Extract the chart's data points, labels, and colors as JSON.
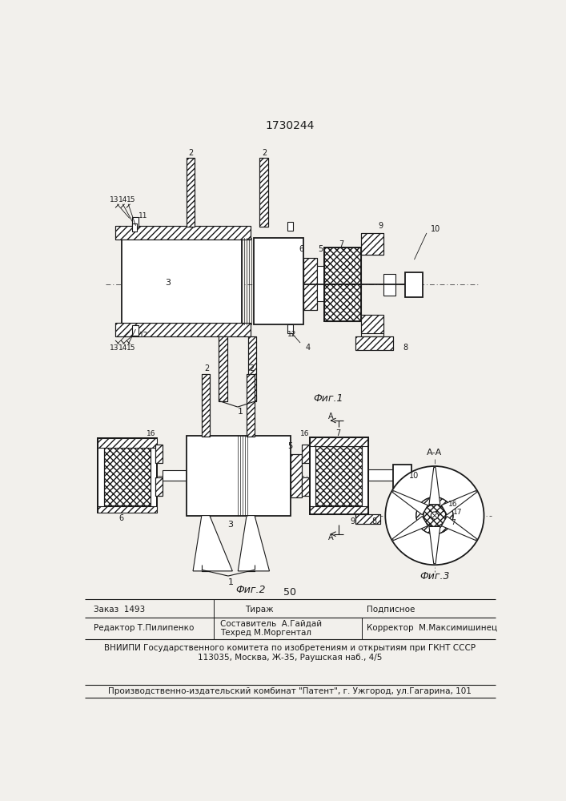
{
  "title": "1730244",
  "fig1_label": "Фиг.1",
  "fig2_label": "Фиг.2",
  "fig3_label": "Фиг.3",
  "page_number": "50",
  "footer_line1": "Составитель  А.Гайдай",
  "footer_line2": "Техред М.Моргентал",
  "footer_editor": "Редактор Т.Пилипенко",
  "footer_corrector": "Корректор  М.Максимишинец",
  "footer_zakaz": "Заказ  1493",
  "footer_tirazh": "Тираж",
  "footer_podpisnoe": "Подписное",
  "footer_vniiipi": "ВНИИПИ Государственного комитета по изобретениям и открытиям при ГКНТ СССР",
  "footer_address": "113035, Москва, Ж-35, Раушская наб., 4/5",
  "footer_patent": "Производственно-издательский комбинат \"Патент\", г. Ужгород, ул.Гагарина, 101",
  "bg_color": "#f2f0ec",
  "line_color": "#1a1a1a"
}
